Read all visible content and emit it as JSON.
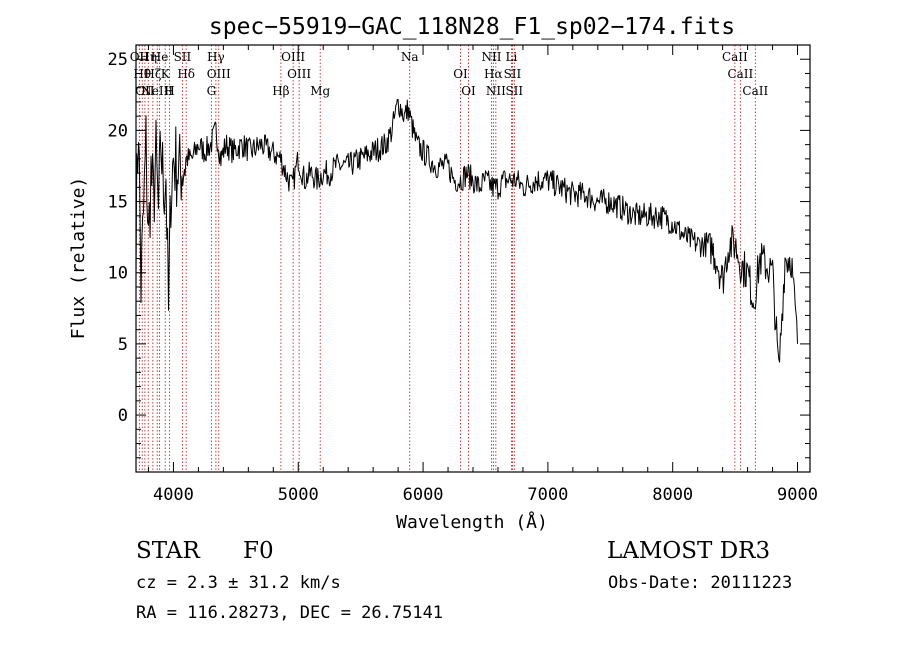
{
  "chart_data": {
    "type": "line",
    "title": "spec−55919−GAC_118N28_F1_sp02−174.fits",
    "xlabel": "Wavelength (Å)",
    "ylabel": "Flux (relative)",
    "xlim": [
      3700,
      9100
    ],
    "ylim": [
      -4,
      26
    ],
    "xticks": [
      "4000",
      "5000",
      "6000",
      "7000",
      "8000",
      "9000"
    ],
    "yticks": [
      "0",
      "5",
      "10",
      "15",
      "20",
      "25"
    ],
    "series": [
      {
        "name": "spectrum",
        "x": [
          3700,
          3720,
          3740,
          3760,
          3780,
          3800,
          3820,
          3840,
          3860,
          3880,
          3900,
          3920,
          3940,
          3960,
          3980,
          4000,
          4050,
          4100,
          4150,
          4200,
          4250,
          4300,
          4340,
          4380,
          4420,
          4480,
          4550,
          4620,
          4700,
          4780,
          4860,
          4900,
          4950,
          5000,
          5050,
          5100,
          5150,
          5200,
          5250,
          5300,
          5400,
          5500,
          5600,
          5700,
          5750,
          5800,
          5850,
          5880,
          5920,
          5950,
          6000,
          6050,
          6100,
          6150,
          6200,
          6250,
          6300,
          6350,
          6400,
          6450,
          6500,
          6560,
          6600,
          6650,
          6700,
          6750,
          6800,
          6900,
          7000,
          7100,
          7200,
          7300,
          7400,
          7500,
          7600,
          7700,
          7800,
          7900,
          8000,
          8100,
          8200,
          8300,
          8350,
          8400,
          8450,
          8500,
          8550,
          8600,
          8650,
          8700,
          8750,
          8800,
          8850,
          8900,
          8950,
          9000
        ],
        "values": [
          13,
          21,
          9,
          14,
          19,
          12,
          17,
          15,
          18,
          14,
          19,
          16,
          17,
          7,
          16,
          18,
          17,
          18,
          18,
          19,
          18.5,
          19,
          20,
          18,
          19,
          18.5,
          19,
          18.5,
          19,
          18.5,
          18,
          17,
          16,
          18,
          16.5,
          17,
          16.5,
          17,
          17,
          17.5,
          17.5,
          18,
          18.5,
          19,
          20,
          22,
          21,
          21.5,
          20,
          19,
          18.5,
          18,
          17.5,
          17.5,
          17.5,
          16.5,
          16.5,
          17,
          16.5,
          16,
          16.5,
          16,
          16,
          16.5,
          16.5,
          16.5,
          16,
          16.5,
          16.5,
          16,
          15.5,
          15.5,
          15,
          15,
          14.5,
          14,
          14,
          14,
          13.5,
          12.5,
          12,
          12,
          11,
          9.5,
          12,
          12,
          10.5,
          10,
          8,
          11,
          10.5,
          10,
          3,
          11,
          11,
          5
        ]
      }
    ],
    "lines": [
      {
        "wave": 3727,
        "label": "OII"
      },
      {
        "wave": 3750,
        "label": "Hθ"
      },
      {
        "wave": 3771,
        "label": "OII"
      },
      {
        "wave": 3798,
        "label": "Hη"
      },
      {
        "wave": 3835,
        "label": "Hζ"
      },
      {
        "wave": 3870,
        "label": "NeIII"
      },
      {
        "wave": 3889,
        "label": "He"
      },
      {
        "wave": 3934,
        "label": "K"
      },
      {
        "wave": 3969,
        "label": "H"
      },
      {
        "wave": 4072,
        "label": "SII"
      },
      {
        "wave": 4102,
        "label": "Hδ"
      },
      {
        "wave": 4304,
        "label": "G"
      },
      {
        "wave": 4340,
        "label": "Hγ"
      },
      {
        "wave": 4363,
        "label": "OIII"
      },
      {
        "wave": 4861,
        "label": "Hβ"
      },
      {
        "wave": 4959,
        "label": "OIII"
      },
      {
        "wave": 5007,
        "label": "OIII"
      },
      {
        "wave": 5176,
        "label": "Mg"
      },
      {
        "wave": 5893,
        "label": "Na"
      },
      {
        "wave": 6300,
        "label": "OI"
      },
      {
        "wave": 6364,
        "label": "OI"
      },
      {
        "wave": 6548,
        "label": "NII"
      },
      {
        "wave": 6563,
        "label": "Hα"
      },
      {
        "wave": 6583,
        "label": "NII"
      },
      {
        "wave": 6708,
        "label": "Li"
      },
      {
        "wave": 6716,
        "label": "SII"
      },
      {
        "wave": 6731,
        "label": "SII"
      },
      {
        "wave": 8498,
        "label": "CaII"
      },
      {
        "wave": 8542,
        "label": "CaII"
      },
      {
        "wave": 8662,
        "label": "CaII"
      }
    ]
  },
  "info": {
    "object_class": "STAR",
    "subclass": "F0",
    "survey": "LAMOST DR3",
    "redshift_text": "cz = 2.3 ± 31.2 km/s",
    "obs_date_text": "Obs-Date: 20111223",
    "coords_text": "RA = 116.28273, DEC =  26.75141"
  },
  "colors": {
    "axis": "#000000",
    "line_marker": "#c62828",
    "spectrum": "#000000"
  }
}
